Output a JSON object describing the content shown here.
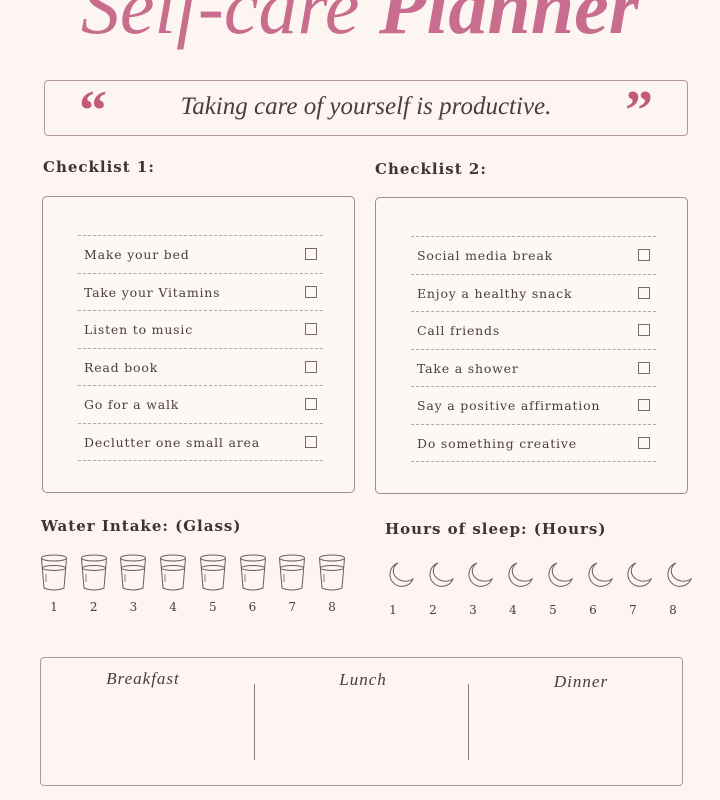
{
  "title": {
    "part1": "Self-care",
    "part2": "Planner"
  },
  "quote": {
    "text": "Taking care of yourself is productive.",
    "open": "“",
    "close": "”"
  },
  "checklist1": {
    "label": "Checklist 1:",
    "items": [
      "Make your bed",
      "Take your Vitamins",
      "Listen to music",
      "Read book",
      "Go for a walk",
      "Declutter one small area"
    ]
  },
  "checklist2": {
    "label": "Checklist 2:",
    "items": [
      "Social media break",
      "Enjoy a healthy snack",
      "Call friends",
      "Take a shower",
      "Say a positive affirmation",
      "Do something creative"
    ]
  },
  "water": {
    "label": "Water Intake: (Glass)",
    "numbers": [
      "1",
      "2",
      "3",
      "4",
      "5",
      "6",
      "7",
      "8"
    ],
    "icon": "glass-icon"
  },
  "sleep": {
    "label": "Hours of sleep: (Hours)",
    "numbers": [
      "1",
      "2",
      "3",
      "4",
      "5",
      "6",
      "7",
      "8"
    ],
    "icon": "moon-icon"
  },
  "meals": {
    "items": [
      "Breakfast",
      "Lunch",
      "Dinner"
    ]
  },
  "colors": {
    "accent": "#c86d8d",
    "border": "#a4879a",
    "background": "#fcf5f1"
  }
}
